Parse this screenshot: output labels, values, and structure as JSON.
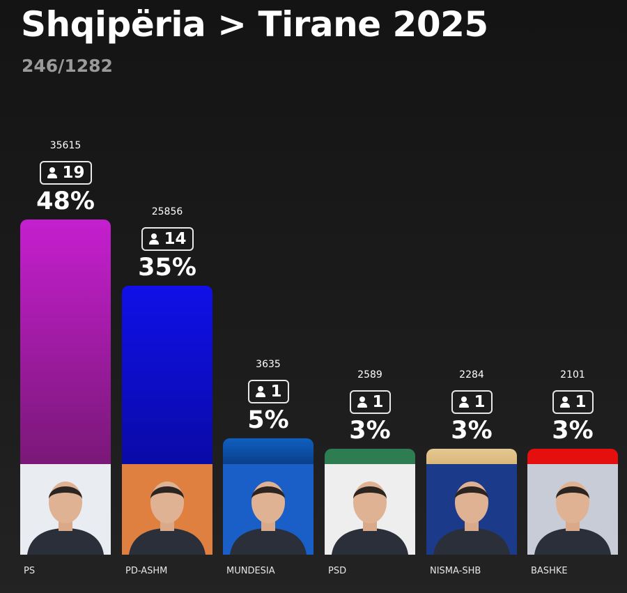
{
  "header": {
    "title": "Shqipëria > Tirane 2025",
    "subtitle": "246/1282"
  },
  "chart_data": {
    "type": "bar",
    "title": "Shqipëria > Tirane 2025",
    "subtitle": "246/1282",
    "categories": [
      "PS",
      "PD-ASHM",
      "MUNDESIA",
      "PSD",
      "NISMA-SHB",
      "BASHKE"
    ],
    "values": [
      48,
      35,
      5,
      3,
      3,
      3
    ],
    "value_labels": [
      "48%",
      "35%",
      "5%",
      "3%",
      "3%",
      "3%"
    ],
    "votes": [
      "35615",
      "25856",
      "3635",
      "2589",
      "2284",
      "2101"
    ],
    "seats": [
      "19",
      "14",
      "1",
      "1",
      "1",
      "1"
    ],
    "colors": [
      [
        "#c51fcf",
        "#7a1878"
      ],
      [
        "#1010e8",
        "#0a0aa8"
      ],
      [
        "#0f5fc0",
        "#0a3f8a"
      ],
      [
        "#2e7d52",
        "#2e7d52"
      ],
      [
        "#e4c892",
        "#d9b87a"
      ],
      [
        "#e60f0f",
        "#e60f0f"
      ]
    ],
    "photo_bg": [
      "#e9edf2",
      "#e08040",
      "#1a5fc8",
      "#eeeeee",
      "#1b3a8a",
      "#c8ccd6"
    ],
    "ylim": [
      0,
      48
    ],
    "grid": false,
    "legend": "none"
  }
}
